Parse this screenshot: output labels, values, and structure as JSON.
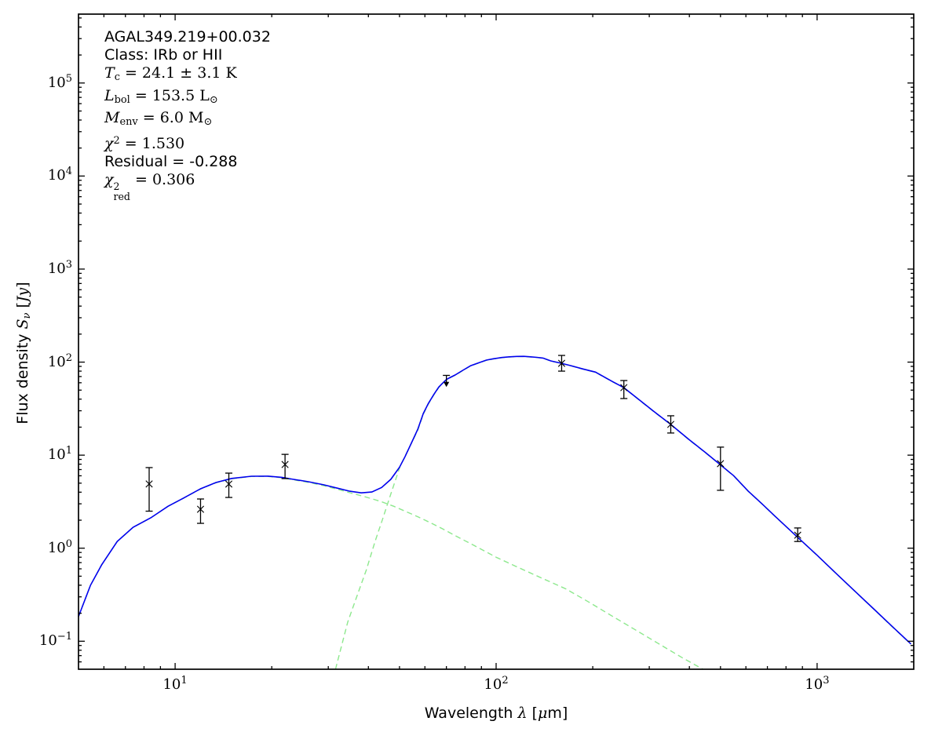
{
  "page": {
    "background": "#ffffff"
  },
  "annotation": {
    "lines": [
      {
        "font": "sans",
        "segments": [
          {
            "text": "AGAL349.219+00.032"
          }
        ]
      },
      {
        "font": "sans",
        "segments": [
          {
            "text": "Class: IRb or HII"
          }
        ]
      },
      {
        "font": "serif",
        "segments": [
          {
            "text": "T",
            "it": true
          },
          {
            "text": "c",
            "sub": true
          },
          {
            "text": " = 24.1 ± 3.1 K"
          }
        ]
      },
      {
        "font": "serif",
        "segments": [
          {
            "text": "L",
            "it": true
          },
          {
            "text": "bol",
            "sub": true
          },
          {
            "text": " = 153.5 L"
          },
          {
            "text": "⊙",
            "sub": true
          }
        ]
      },
      {
        "font": "serif",
        "segments": [
          {
            "text": "M",
            "it": true
          },
          {
            "text": "env",
            "sub": true
          },
          {
            "text": " = 6.0 M"
          },
          {
            "text": "⊙",
            "sub": true
          }
        ]
      },
      {
        "font": "serif",
        "segments": [
          {
            "text": "χ",
            "it": true
          },
          {
            "text": "2",
            "sup": true
          },
          {
            "text": " = 1.530"
          }
        ]
      },
      {
        "font": "sans",
        "segments": [
          {
            "text": "Residual = -0.288"
          }
        ]
      },
      {
        "font": "serif",
        "segments": [
          {
            "text": "χ",
            "it": true
          },
          {
            "stack": {
              "sup": "2",
              "sub": "red"
            }
          },
          {
            "text": " = 0.306"
          }
        ]
      }
    ]
  },
  "chart_data": {
    "type": "line",
    "title": "",
    "source_name": "AGAL349.219+00.032",
    "x_scale": "log",
    "y_scale": "log",
    "xlim": [
      5,
      2000
    ],
    "ylim": [
      0.05,
      550000
    ],
    "grid": false,
    "tick_label_base": "10",
    "x_tick_exponents": [
      1,
      2,
      3
    ],
    "y_tick_exponents": [
      5,
      4,
      3,
      2,
      1,
      0,
      -1
    ],
    "xlabel_segments": [
      {
        "text": "Wavelength "
      },
      {
        "text": "λ",
        "it": true,
        "serif": true
      },
      {
        "text": " ["
      },
      {
        "text": "μ",
        "it": true,
        "serif": true
      },
      {
        "text": "m]"
      }
    ],
    "ylabel_segments": [
      {
        "text": "Flux density "
      },
      {
        "text": "S",
        "it": true,
        "serif": true
      },
      {
        "text": "ν",
        "it": true,
        "serif": true,
        "sub": true
      },
      {
        "text": " [",
        "serif": true
      },
      {
        "text": "Jy",
        "it": true,
        "serif": true
      },
      {
        "text": "]",
        "serif": true
      }
    ],
    "colors": {
      "total_model": "#0000ee",
      "components": "#8de88d",
      "data_points": "#000000",
      "frame": "#000000"
    },
    "series": [
      {
        "name": "hot-component",
        "color": "#8de88d",
        "dash": "7 4.5",
        "points": [
          [
            5.0,
            0.184
          ],
          [
            5.45,
            0.4
          ],
          [
            5.9,
            0.66
          ],
          [
            6.6,
            1.18
          ],
          [
            7.4,
            1.68
          ],
          [
            8.4,
            2.12
          ],
          [
            9.5,
            2.82
          ],
          [
            10.6,
            3.43
          ],
          [
            12,
            4.33
          ],
          [
            13.4,
            5.05
          ],
          [
            15,
            5.58
          ],
          [
            17.3,
            5.9
          ],
          [
            19.5,
            5.9
          ],
          [
            21.5,
            5.72
          ],
          [
            23,
            5.48
          ],
          [
            26,
            5.1
          ],
          [
            29,
            4.7
          ],
          [
            32,
            4.3
          ],
          [
            35,
            3.95
          ],
          [
            38,
            3.66
          ],
          [
            41,
            3.4
          ],
          [
            44,
            3.15
          ],
          [
            48,
            2.82
          ],
          [
            52,
            2.5
          ],
          [
            57,
            2.18
          ],
          [
            62,
            1.9
          ],
          [
            68,
            1.62
          ],
          [
            75,
            1.35
          ],
          [
            85,
            1.08
          ],
          [
            100,
            0.8
          ],
          [
            115,
            0.64
          ],
          [
            140,
            0.47
          ],
          [
            165,
            0.365
          ],
          [
            195,
            0.262
          ],
          [
            230,
            0.186
          ],
          [
            270,
            0.134
          ],
          [
            320,
            0.0945
          ],
          [
            380,
            0.0665
          ],
          [
            441,
            0.05
          ]
        ]
      },
      {
        "name": "cold-component",
        "color": "#8de88d",
        "dash": "7 4.5",
        "points": [
          [
            31.6,
            0.05
          ],
          [
            34.5,
            0.161
          ],
          [
            36.5,
            0.278
          ],
          [
            39.4,
            0.582
          ],
          [
            42,
            1.19
          ],
          [
            44.2,
            2.01
          ],
          [
            46.8,
            3.68
          ],
          [
            50.2,
            7.55
          ],
          [
            54.7,
            13.9
          ],
          [
            57,
            18.5
          ],
          [
            59.3,
            27.5
          ],
          [
            61.5,
            35.5
          ],
          [
            64,
            44.5
          ],
          [
            66.3,
            53.5
          ],
          [
            68,
            58.5
          ],
          [
            70,
            64.5
          ],
          [
            72,
            68
          ],
          [
            74.5,
            72.2
          ],
          [
            78,
            79.5
          ],
          [
            83.3,
            91.2
          ],
          [
            88,
            97.5
          ],
          [
            93.2,
            104.5
          ],
          [
            98,
            108
          ],
          [
            104,
            111.5
          ],
          [
            110,
            113.6
          ],
          [
            116,
            114.8
          ],
          [
            122,
            114.9
          ],
          [
            128,
            113.6
          ],
          [
            134,
            112.1
          ],
          [
            140,
            110.2
          ],
          [
            148,
            102.6
          ],
          [
            160,
            96.6
          ],
          [
            172,
            90.6
          ],
          [
            186,
            84.1
          ],
          [
            204,
            77.7
          ],
          [
            230,
            61.7
          ],
          [
            250,
            52.9
          ],
          [
            280,
            38.8
          ],
          [
            310,
            29.3
          ],
          [
            350,
            21.3
          ],
          [
            400,
            14.5
          ],
          [
            450,
            10.55
          ],
          [
            495,
            8.05
          ],
          [
            550,
            5.97
          ],
          [
            610,
            4.09
          ],
          [
            673,
            2.99
          ],
          [
            740,
            2.19
          ],
          [
            860,
            1.355
          ],
          [
            1000,
            0.837
          ],
          [
            1150,
            0.528
          ],
          [
            1300,
            0.354
          ],
          [
            1500,
            0.222
          ],
          [
            1700,
            0.147
          ],
          [
            1960,
            0.093
          ]
        ]
      },
      {
        "name": "total-model",
        "color": "#0000ee",
        "dash": "",
        "points": [
          [
            5.0,
            0.184
          ],
          [
            5.45,
            0.4
          ],
          [
            5.9,
            0.66
          ],
          [
            6.6,
            1.18
          ],
          [
            7.4,
            1.68
          ],
          [
            8.4,
            2.12
          ],
          [
            9.5,
            2.82
          ],
          [
            10.6,
            3.44
          ],
          [
            12,
            4.35
          ],
          [
            13.4,
            5.08
          ],
          [
            15,
            5.62
          ],
          [
            17.3,
            5.93
          ],
          [
            19.5,
            5.95
          ],
          [
            21.5,
            5.78
          ],
          [
            23,
            5.55
          ],
          [
            26,
            5.18
          ],
          [
            29,
            4.8
          ],
          [
            32,
            4.42
          ],
          [
            35,
            4.1
          ],
          [
            38,
            3.93
          ],
          [
            41,
            4.02
          ],
          [
            44,
            4.5
          ],
          [
            47,
            5.5
          ],
          [
            50,
            7.4
          ],
          [
            52,
            9.6
          ],
          [
            55,
            14.5
          ],
          [
            57,
            19
          ],
          [
            59.3,
            28
          ],
          [
            61.5,
            36
          ],
          [
            64,
            45
          ],
          [
            66.3,
            54
          ],
          [
            68,
            59
          ],
          [
            70,
            65
          ],
          [
            72,
            68.5
          ],
          [
            74.5,
            72.6
          ],
          [
            78,
            80
          ],
          [
            83.3,
            91.6
          ],
          [
            88,
            98
          ],
          [
            93.2,
            105
          ],
          [
            98,
            108.5
          ],
          [
            104,
            112
          ],
          [
            110,
            114
          ],
          [
            116,
            115.2
          ],
          [
            122,
            115.3
          ],
          [
            128,
            114
          ],
          [
            134,
            112.5
          ],
          [
            140,
            110.6
          ],
          [
            148,
            103
          ],
          [
            160,
            97
          ],
          [
            172,
            91
          ],
          [
            186,
            84.5
          ],
          [
            204,
            78
          ],
          [
            230,
            62
          ],
          [
            250,
            53.2
          ],
          [
            280,
            39
          ],
          [
            310,
            29.5
          ],
          [
            350,
            21.4
          ],
          [
            400,
            14.6
          ],
          [
            450,
            10.6
          ],
          [
            495,
            8.1
          ],
          [
            550,
            6.0
          ],
          [
            610,
            4.11
          ],
          [
            673,
            3.0
          ],
          [
            740,
            2.2
          ],
          [
            860,
            1.36
          ],
          [
            1000,
            0.84
          ],
          [
            1150,
            0.53
          ],
          [
            1300,
            0.355
          ],
          [
            1500,
            0.223
          ],
          [
            1700,
            0.148
          ],
          [
            1960,
            0.0935
          ]
        ]
      }
    ],
    "data_points": [
      {
        "lam": 8.3,
        "flux": 4.9,
        "lo": 2.5,
        "hi": 7.35
      },
      {
        "lam": 12,
        "flux": 2.62,
        "lo": 1.85,
        "hi": 3.38
      },
      {
        "lam": 14.7,
        "flux": 4.89,
        "lo": 3.51,
        "hi": 6.41
      },
      {
        "lam": 22,
        "flux": 7.94,
        "lo": 5.6,
        "hi": 10.2
      },
      {
        "lam": 160,
        "flux": 97,
        "lo": 80,
        "hi": 118
      },
      {
        "lam": 250,
        "flux": 53.2,
        "lo": 40.6,
        "hi": 63.4
      },
      {
        "lam": 350,
        "flux": 21.4,
        "lo": 17.3,
        "hi": 26.5
      },
      {
        "lam": 500,
        "flux": 8.1,
        "lo": 4.19,
        "hi": 12.2
      },
      {
        "lam": 870,
        "flux": 1.38,
        "lo": 1.18,
        "hi": 1.65
      }
    ],
    "upper_limits": [
      {
        "lam": 70,
        "flux": 72,
        "arrow_tip": 54
      }
    ]
  }
}
